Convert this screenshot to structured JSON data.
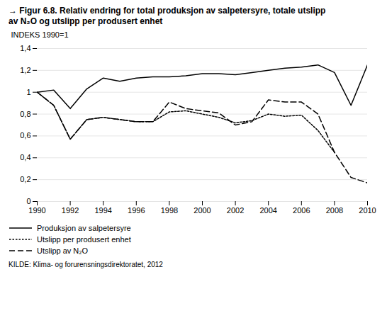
{
  "chart_data": {
    "type": "line",
    "title": "→ Figur 6.8. Relativ endring for total produksjon av salpetersyre, totale utslipp",
    "subtitle": "av N₂O og utslipp per produsert enhet",
    "ylabel": "INDEKS 1990=1",
    "source": "KILDE: Klima- og forurensningsdirektoratet, 2012",
    "x": [
      1990,
      1991,
      1992,
      1993,
      1994,
      1995,
      1996,
      1997,
      1998,
      1999,
      2000,
      2001,
      2002,
      2003,
      2004,
      2005,
      2006,
      2007,
      2008,
      2009,
      2010
    ],
    "series": [
      {
        "name": "Produksjon av salpetersyre",
        "color": "#000000",
        "line_style": "solid",
        "values": [
          1.0,
          1.02,
          0.85,
          1.03,
          1.13,
          1.1,
          1.13,
          1.14,
          1.14,
          1.15,
          1.17,
          1.17,
          1.16,
          1.18,
          1.2,
          1.22,
          1.23,
          1.25,
          1.18,
          0.88,
          1.25
        ]
      },
      {
        "name": "Utslipp per produsert enhet",
        "color": "#000000",
        "line_style": "dotted",
        "values": [
          1.0,
          0.88,
          0.57,
          0.75,
          0.77,
          0.75,
          0.73,
          0.73,
          0.82,
          0.83,
          0.8,
          0.77,
          0.72,
          0.74,
          0.8,
          0.78,
          0.79,
          0.65,
          0.45,
          null,
          null
        ]
      },
      {
        "name": "Utslipp av N₂O",
        "color": "#000000",
        "line_style": "dashed",
        "values": [
          1.0,
          0.88,
          0.57,
          0.75,
          0.77,
          0.75,
          0.73,
          0.73,
          0.91,
          0.85,
          0.83,
          0.81,
          0.7,
          0.73,
          0.93,
          0.91,
          0.91,
          0.8,
          0.45,
          0.22,
          0.17
        ]
      }
    ],
    "xlim": [
      1990,
      2010
    ],
    "xticks": [
      1990,
      1992,
      1994,
      1996,
      1998,
      2000,
      2002,
      2004,
      2006,
      2008,
      2010
    ],
    "ylim": [
      0,
      1.4
    ],
    "yticks": [
      0,
      {
        "value": 0.2,
        "label": "0,2"
      },
      {
        "value": 0.4,
        "label": "0,4"
      },
      {
        "value": 0.6,
        "label": "0,6"
      },
      {
        "value": 0.8,
        "label": "0,8"
      },
      1,
      {
        "value": 1.2,
        "label": "1,2"
      },
      {
        "value": 1.4,
        "label": "1,4"
      }
    ],
    "grid": true,
    "legend": "bottom left"
  }
}
